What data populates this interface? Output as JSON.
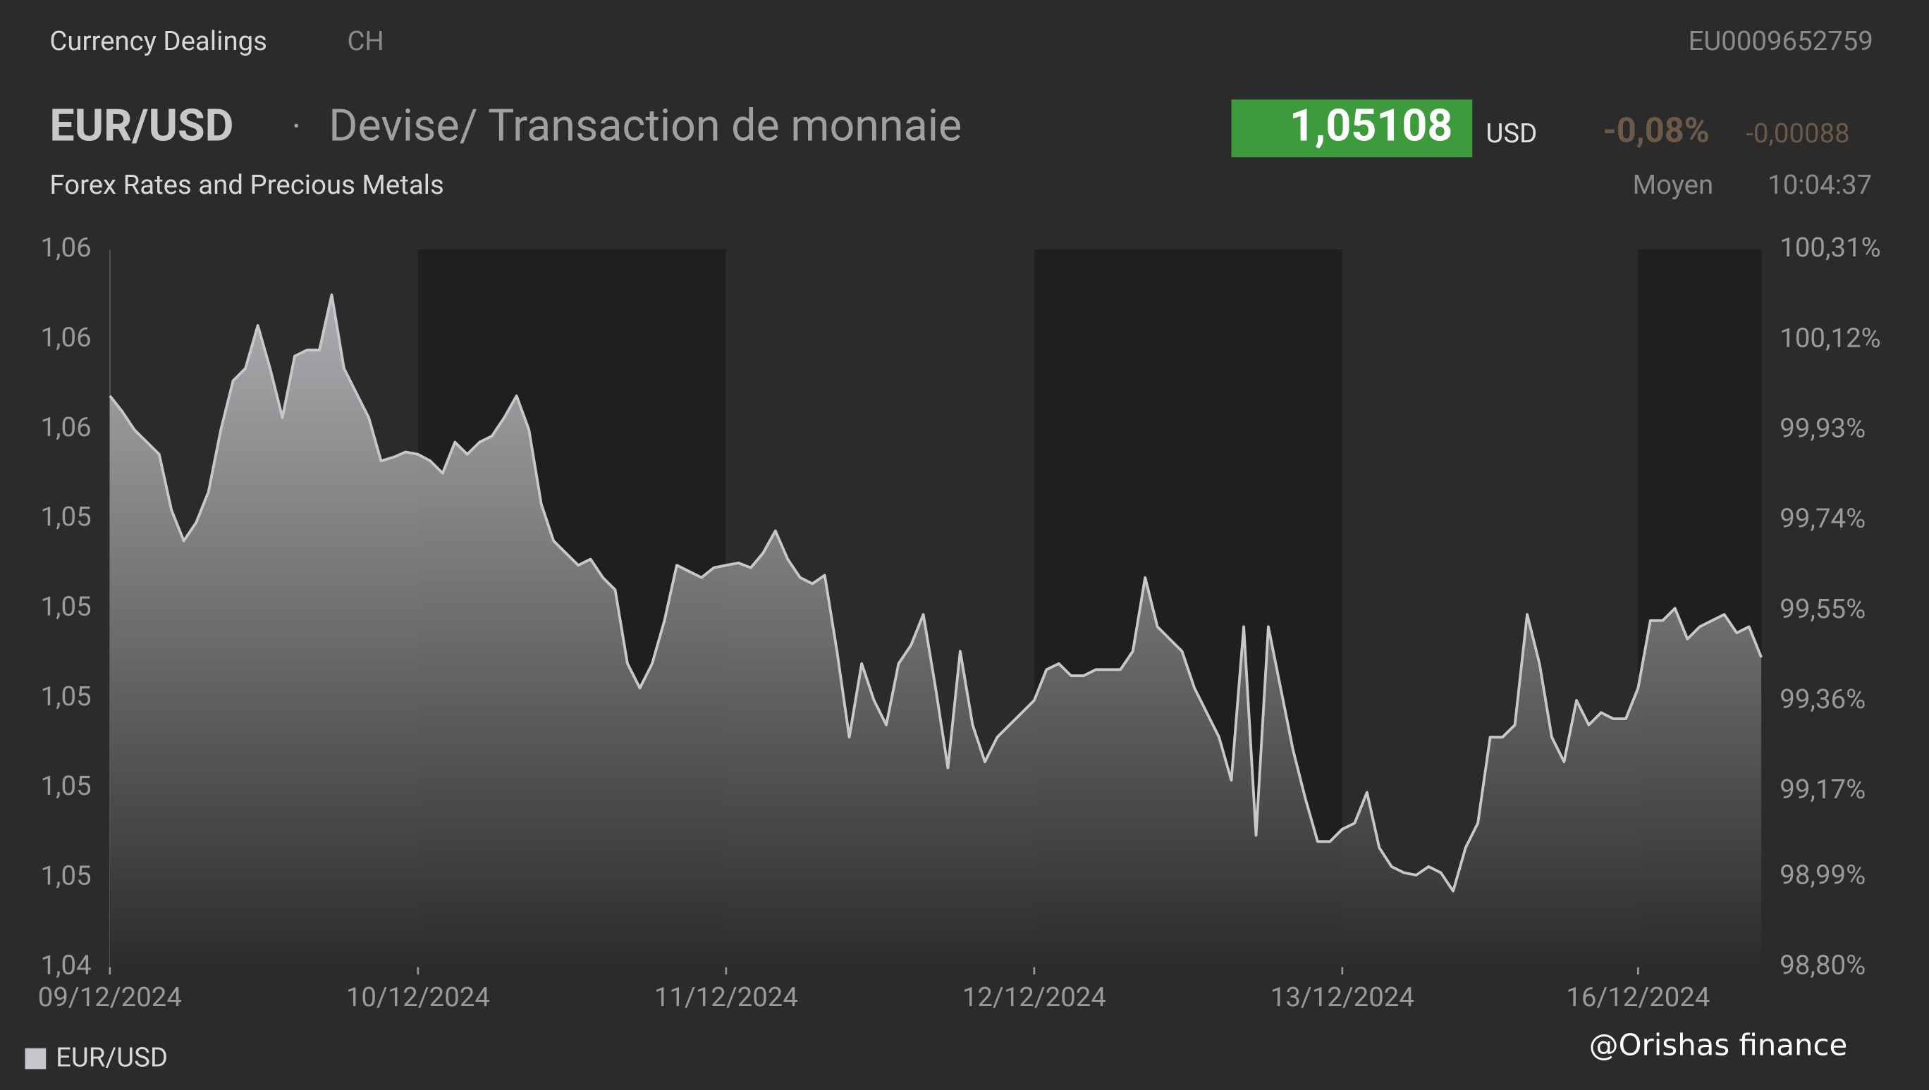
{
  "header": {
    "section": "Currency Dealings",
    "country": "CH",
    "isin": "EU0009652759",
    "symbol": "EUR/USD",
    "separator": "·",
    "description": "Devise/ Transaction de monnaie",
    "price": "1,05108",
    "currency": "USD",
    "change_pct": "-0,08%",
    "change_abs": "-0,00088",
    "subtitle": "Forex Rates and Precious Metals",
    "price_type": "Moyen",
    "time": "10:04:37"
  },
  "watermark": "@Orishas finance",
  "chart_data": {
    "type": "area",
    "categories": [
      "09/12/2024",
      null,
      null,
      null,
      null,
      null,
      null,
      null,
      null,
      null,
      null,
      null,
      null,
      null,
      null,
      null,
      null,
      null,
      null,
      null,
      null,
      null,
      null,
      null,
      null,
      "10/12/2024",
      null,
      null,
      null,
      null,
      null,
      null,
      null,
      null,
      null,
      null,
      null,
      null,
      null,
      null,
      null,
      null,
      null,
      null,
      null,
      null,
      null,
      null,
      null,
      null,
      "11/12/2024",
      null,
      null,
      null,
      null,
      null,
      null,
      null,
      null,
      null,
      null,
      null,
      null,
      null,
      null,
      null,
      null,
      null,
      null,
      null,
      null,
      null,
      null,
      null,
      null,
      "12/12/2024",
      null,
      null,
      null,
      null,
      null,
      null,
      null,
      null,
      null,
      null,
      null,
      null,
      null,
      null,
      null,
      null,
      null,
      null,
      null,
      null,
      null,
      null,
      null,
      null,
      "13/12/2024",
      null,
      null,
      null,
      null,
      null,
      null,
      null,
      null,
      null,
      null,
      null,
      null,
      null,
      null,
      null,
      null,
      null,
      null,
      null,
      null,
      null,
      null,
      null,
      "16/12/2024",
      null,
      null,
      null,
      null,
      null,
      null,
      null,
      null,
      null,
      null
    ],
    "series": [
      {
        "name": "EUR/USD",
        "color": "#c8c8cc",
        "values": [
          1.057,
          1.05667,
          1.05628,
          1.05602,
          1.05576,
          1.05458,
          1.05393,
          1.05432,
          1.05497,
          1.05628,
          1.05732,
          1.05758,
          1.05849,
          1.05758,
          1.05654,
          1.05784,
          1.05797,
          1.05797,
          1.05914,
          1.05758,
          1.05706,
          1.05654,
          1.05562,
          1.0557,
          1.05581,
          1.05576,
          1.05562,
          1.05536,
          1.05602,
          1.05576,
          1.05602,
          1.05615,
          1.05654,
          1.057,
          1.05628,
          1.05471,
          1.05393,
          1.05367,
          1.05341,
          1.05354,
          1.05315,
          1.05289,
          1.05133,
          1.05081,
          1.05133,
          1.05224,
          1.05341,
          1.05328,
          1.05315,
          1.05336,
          1.05341,
          1.05346,
          1.05336,
          1.05367,
          1.05414,
          1.05354,
          1.05315,
          1.05302,
          1.0532,
          1.05159,
          1.04977,
          1.05133,
          1.05055,
          1.05003,
          1.05133,
          1.05172,
          1.05237,
          1.05081,
          1.04912,
          1.05159,
          1.05003,
          1.04925,
          1.04977,
          1.05003,
          1.05029,
          1.05055,
          1.0512,
          1.05133,
          1.05107,
          1.05107,
          1.0512,
          1.0512,
          1.0512,
          1.05159,
          1.05315,
          1.05211,
          1.05185,
          1.05159,
          1.05081,
          1.05029,
          1.04977,
          1.04886,
          1.05211,
          1.04769,
          1.05211,
          1.05081,
          1.04951,
          1.04847,
          1.04756,
          1.04756,
          1.04782,
          1.04795,
          1.0486,
          1.04743,
          1.04703,
          1.0469,
          1.04685,
          1.04703,
          1.0469,
          1.04651,
          1.04743,
          1.04795,
          1.04977,
          1.04977,
          1.05003,
          1.05237,
          1.05133,
          1.04977,
          1.04925,
          1.05055,
          1.05003,
          1.05029,
          1.05016,
          1.05016,
          1.05081,
          1.05224,
          1.05224,
          1.0525,
          1.05185,
          1.05211,
          1.05224,
          1.05237,
          1.05198,
          1.05211,
          1.05146
        ]
      }
    ],
    "ylim": [
      1.0449,
      1.0601
    ],
    "yticks": [
      {
        "value": 1.0449,
        "label": "1,04"
      },
      {
        "value": 1.0468,
        "label": "1,05"
      },
      {
        "value": 1.0487,
        "label": "1,05"
      },
      {
        "value": 1.0506,
        "label": "1,05"
      },
      {
        "value": 1.0525,
        "label": "1,05"
      },
      {
        "value": 1.0544,
        "label": "1,05"
      },
      {
        "value": 1.0563,
        "label": "1,06"
      },
      {
        "value": 1.0582,
        "label": "1,06"
      },
      {
        "value": 1.0601,
        "label": "1,06"
      }
    ],
    "y2lim": [
      98.8,
      100.31
    ],
    "y2ticks": [
      {
        "value": 98.8,
        "label": "98,80%"
      },
      {
        "value": 98.99,
        "label": "98,99%"
      },
      {
        "value": 99.17,
        "label": "99,17%"
      },
      {
        "value": 99.36,
        "label": "99,36%"
      },
      {
        "value": 99.55,
        "label": "99,55%"
      },
      {
        "value": 99.74,
        "label": "99,74%"
      },
      {
        "value": 99.93,
        "label": "99,93%"
      },
      {
        "value": 100.12,
        "label": "100,12%"
      },
      {
        "value": 100.31,
        "label": "100,31%"
      }
    ],
    "grid": false,
    "legend": "bottom-left"
  }
}
